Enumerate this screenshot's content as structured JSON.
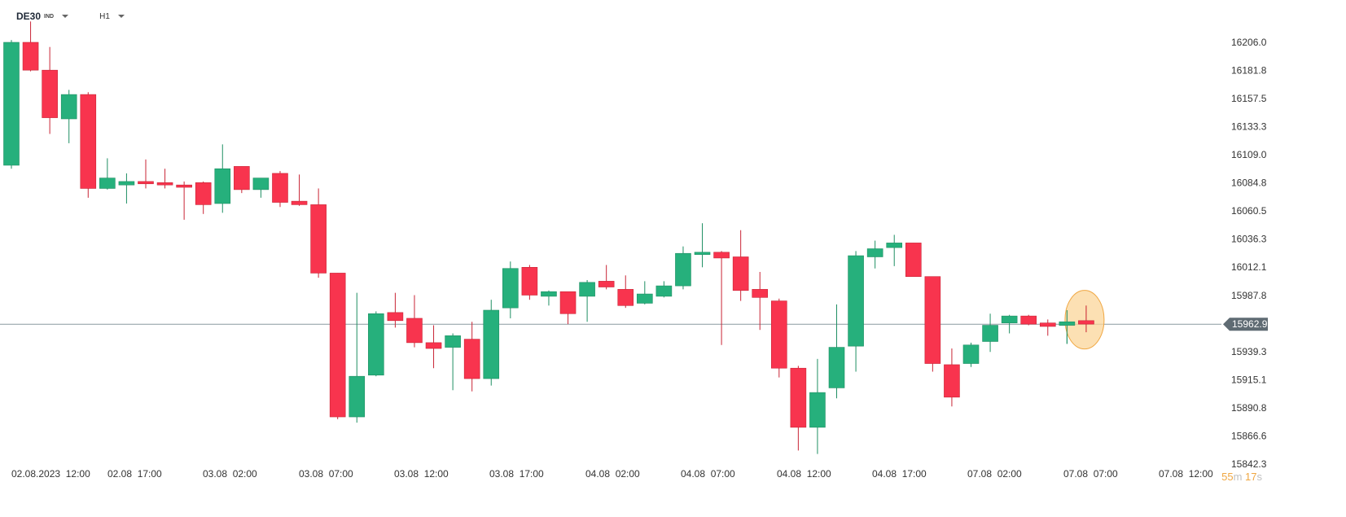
{
  "header": {
    "symbol": "DE30",
    "symbol_type": "IND",
    "timeframe": "H1"
  },
  "countdown": {
    "minutes": "55",
    "minutes_unit": "m",
    "seconds": "17",
    "seconds_unit": "s"
  },
  "chart_data": {
    "type": "candlestick",
    "y_axis_ticks": [
      "16206.0",
      "16181.8",
      "16157.5",
      "16133.3",
      "16109.0",
      "16084.8",
      "16060.5",
      "16036.3",
      "16012.1",
      "15987.8",
      "15939.3",
      "15915.1",
      "15890.8",
      "15866.6",
      "15842.3"
    ],
    "ylim": [
      15842.3,
      16206.0
    ],
    "x_axis_ticks": [
      "02.08.2023  12:00",
      "02.08  17:00",
      "03.08  02:00",
      "03.08  07:00",
      "03.08  12:00",
      "03.08  17:00",
      "04.08  02:00",
      "04.08  07:00",
      "04.08  12:00",
      "04.08  17:00",
      "07.08  02:00",
      "07.08  07:00",
      "07.08  12:00"
    ],
    "current_price": "15962.9",
    "candles": [
      {
        "o": 16100.0,
        "h": 16208.0,
        "l": 16097.0,
        "c": 16206.0
      },
      {
        "o": 16206.0,
        "h": 16224.0,
        "l": 16181.0,
        "c": 16182.0
      },
      {
        "o": 16182.0,
        "h": 16202.0,
        "l": 16127.0,
        "c": 16141.0
      },
      {
        "o": 16140.0,
        "h": 16165.0,
        "l": 16119.0,
        "c": 16161.0
      },
      {
        "o": 16161.0,
        "h": 16163.0,
        "l": 16072.0,
        "c": 16080.0
      },
      {
        "o": 16080.0,
        "h": 16106.0,
        "l": 16079.0,
        "c": 16089.0
      },
      {
        "o": 16083.0,
        "h": 16093.0,
        "l": 16067.0,
        "c": 16086.0
      },
      {
        "o": 16086.0,
        "h": 16105.0,
        "l": 16080.0,
        "c": 16084.0
      },
      {
        "o": 16085.0,
        "h": 16097.0,
        "l": 16080.0,
        "c": 16083.0
      },
      {
        "o": 16083.0,
        "h": 16086.0,
        "l": 16053.0,
        "c": 16081.0
      },
      {
        "o": 16085.0,
        "h": 16086.0,
        "l": 16058.0,
        "c": 16066.0
      },
      {
        "o": 16067.0,
        "h": 16118.0,
        "l": 16059.0,
        "c": 16097.0
      },
      {
        "o": 16099.0,
        "h": 16099.0,
        "l": 16076.0,
        "c": 16079.0
      },
      {
        "o": 16079.0,
        "h": 16089.0,
        "l": 16072.0,
        "c": 16089.0
      },
      {
        "o": 16093.0,
        "h": 16095.0,
        "l": 16064.0,
        "c": 16068.0
      },
      {
        "o": 16069.0,
        "h": 16092.0,
        "l": 16065.0,
        "c": 16066.0
      },
      {
        "o": 16066.0,
        "h": 16080.0,
        "l": 16003.0,
        "c": 16007.0
      },
      {
        "o": 16007.0,
        "h": 16007.0,
        "l": 15881.0,
        "c": 15883.0
      },
      {
        "o": 15883.0,
        "h": 15990.0,
        "l": 15878.0,
        "c": 15918.0
      },
      {
        "o": 15919.0,
        "h": 15974.0,
        "l": 15918.0,
        "c": 15972.0
      },
      {
        "o": 15973.0,
        "h": 15990.0,
        "l": 15960.0,
        "c": 15966.0
      },
      {
        "o": 15968.0,
        "h": 15988.0,
        "l": 15943.0,
        "c": 15947.0
      },
      {
        "o": 15947.0,
        "h": 15962.0,
        "l": 15925.0,
        "c": 15942.0
      },
      {
        "o": 15943.0,
        "h": 15955.0,
        "l": 15906.0,
        "c": 15953.0
      },
      {
        "o": 15950.0,
        "h": 15965.0,
        "l": 15905.0,
        "c": 15916.0
      },
      {
        "o": 15916.0,
        "h": 15984.0,
        "l": 15910.0,
        "c": 15975.0
      },
      {
        "o": 15977.0,
        "h": 16017.0,
        "l": 15968.0,
        "c": 16011.0
      },
      {
        "o": 16012.0,
        "h": 16014.0,
        "l": 15984.0,
        "c": 15988.0
      },
      {
        "o": 15987.0,
        "h": 15992.0,
        "l": 15979.0,
        "c": 15991.0
      },
      {
        "o": 15991.0,
        "h": 15991.0,
        "l": 15963.0,
        "c": 15972.0
      },
      {
        "o": 15987.0,
        "h": 16001.0,
        "l": 15965.0,
        "c": 15999.0
      },
      {
        "o": 16000.0,
        "h": 16014.0,
        "l": 15993.0,
        "c": 15995.0
      },
      {
        "o": 15993.0,
        "h": 16005.0,
        "l": 15977.0,
        "c": 15979.0
      },
      {
        "o": 15981.0,
        "h": 16000.0,
        "l": 15980.0,
        "c": 15989.0
      },
      {
        "o": 15987.0,
        "h": 16000.0,
        "l": 15986.0,
        "c": 15996.0
      },
      {
        "o": 15996.0,
        "h": 16030.0,
        "l": 15993.0,
        "c": 16024.0
      },
      {
        "o": 16023.0,
        "h": 16050.0,
        "l": 16012.0,
        "c": 16025.0
      },
      {
        "o": 16025.0,
        "h": 16026.0,
        "l": 15945.0,
        "c": 16020.0
      },
      {
        "o": 16021.0,
        "h": 16044.0,
        "l": 15983.0,
        "c": 15992.0
      },
      {
        "o": 15993.0,
        "h": 16008.0,
        "l": 15958.0,
        "c": 15986.0
      },
      {
        "o": 15983.0,
        "h": 15985.0,
        "l": 15917.0,
        "c": 15925.0
      },
      {
        "o": 15925.0,
        "h": 15927.0,
        "l": 15854.0,
        "c": 15874.0
      },
      {
        "o": 15874.0,
        "h": 15933.0,
        "l": 15851.0,
        "c": 15904.0
      },
      {
        "o": 15908.0,
        "h": 15980.0,
        "l": 15899.0,
        "c": 15943.0
      },
      {
        "o": 15944.0,
        "h": 16026.0,
        "l": 15922.0,
        "c": 16022.0
      },
      {
        "o": 16021.0,
        "h": 16035.0,
        "l": 16011.0,
        "c": 16028.0
      },
      {
        "o": 16029.0,
        "h": 16040.0,
        "l": 16013.0,
        "c": 16033.0
      },
      {
        "o": 16033.0,
        "h": 16033.0,
        "l": 16004.0,
        "c": 16004.0
      },
      {
        "o": 16004.0,
        "h": 16004.0,
        "l": 15922.0,
        "c": 15929.0
      },
      {
        "o": 15928.0,
        "h": 15942.0,
        "l": 15892.0,
        "c": 15900.0
      },
      {
        "o": 15929.0,
        "h": 15947.0,
        "l": 15926.0,
        "c": 15945.0
      },
      {
        "o": 15948.0,
        "h": 15972.0,
        "l": 15939.0,
        "c": 15962.0
      },
      {
        "o": 15964.0,
        "h": 15971.0,
        "l": 15955.0,
        "c": 15970.0
      },
      {
        "o": 15970.0,
        "h": 15971.0,
        "l": 15962.0,
        "c": 15963.0
      },
      {
        "o": 15964.0,
        "h": 15967.0,
        "l": 15953.0,
        "c": 15961.0
      },
      {
        "o": 15962.0,
        "h": 15975.0,
        "l": 15946.0,
        "c": 15965.0
      },
      {
        "o": 15966.0,
        "h": 15979.0,
        "l": 15956.0,
        "c": 15963.0
      }
    ],
    "colors": {
      "up": "#26b07c",
      "down": "#f8344e",
      "up_border": "#1f8f63",
      "down_border": "#c92536",
      "price_line": "#8a9aa0",
      "price_label_bg": "#5f6b73",
      "highlight_fill": "#fbd59a",
      "highlight_stroke": "#f0a742",
      "countdown_number": "#f0a742",
      "countdown_unit": "#c0c0c0"
    }
  }
}
